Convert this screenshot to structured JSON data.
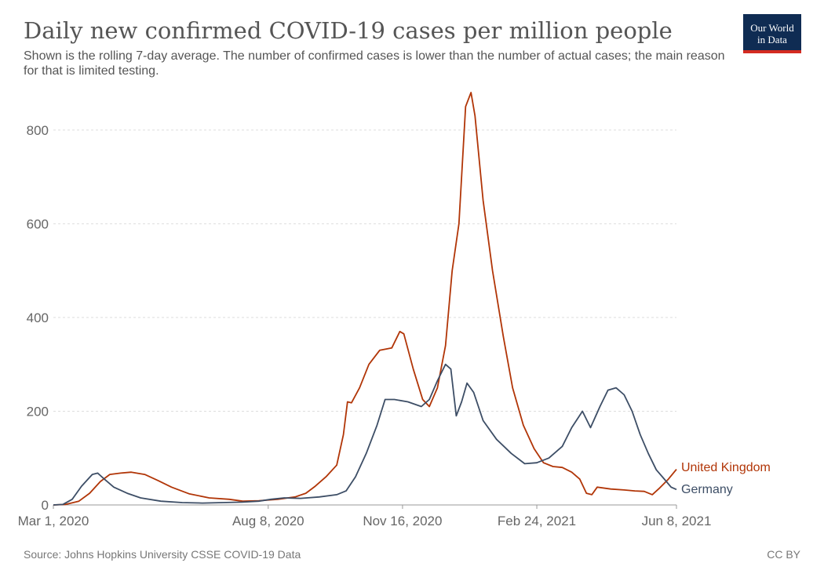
{
  "header": {
    "title": "Daily new confirmed COVID-19 cases per million people",
    "subtitle": "Shown is the rolling 7-day average. The number of confirmed cases is lower than the number of actual cases; the main reason for that is limited testing.",
    "logo_line1": "Our World",
    "logo_line2": "in Data"
  },
  "footer": {
    "source": "Source: Johns Hopkins University CSSE COVID-19 Data",
    "license": "CC BY"
  },
  "chart_data": {
    "type": "line",
    "title": "Daily new confirmed COVID-19 cases per million people",
    "xlabel": "",
    "ylabel": "",
    "x_range": [
      "2020-03-01",
      "2021-06-08"
    ],
    "ylim": [
      0,
      880
    ],
    "y_ticks": [
      0,
      200,
      400,
      600,
      800
    ],
    "x_ticks": [
      {
        "date": "2020-03-01",
        "label": "Mar 1, 2020"
      },
      {
        "date": "2020-08-08",
        "label": "Aug 8, 2020"
      },
      {
        "date": "2020-11-16",
        "label": "Nov 16, 2020"
      },
      {
        "date": "2021-02-24",
        "label": "Feb 24, 2021"
      },
      {
        "date": "2021-06-08",
        "label": "Jun 8, 2021"
      }
    ],
    "grid": "horizontal dashed",
    "legend": "end-of-line labels",
    "series": [
      {
        "name": "United Kingdom",
        "color": "#b13507",
        "points": [
          [
            "2020-03-01",
            0
          ],
          [
            "2020-03-10",
            1
          ],
          [
            "2020-03-20",
            8
          ],
          [
            "2020-03-28",
            25
          ],
          [
            "2020-04-05",
            50
          ],
          [
            "2020-04-12",
            65
          ],
          [
            "2020-04-20",
            68
          ],
          [
            "2020-04-28",
            70
          ],
          [
            "2020-05-08",
            65
          ],
          [
            "2020-05-18",
            52
          ],
          [
            "2020-05-28",
            38
          ],
          [
            "2020-06-10",
            24
          ],
          [
            "2020-06-25",
            15
          ],
          [
            "2020-07-10",
            12
          ],
          [
            "2020-07-20",
            8
          ],
          [
            "2020-08-01",
            9
          ],
          [
            "2020-08-15",
            12
          ],
          [
            "2020-08-28",
            17
          ],
          [
            "2020-09-05",
            25
          ],
          [
            "2020-09-12",
            40
          ],
          [
            "2020-09-20",
            60
          ],
          [
            "2020-09-28",
            85
          ],
          [
            "2020-10-03",
            150
          ],
          [
            "2020-10-06",
            220
          ],
          [
            "2020-10-09",
            218
          ],
          [
            "2020-10-15",
            250
          ],
          [
            "2020-10-22",
            300
          ],
          [
            "2020-10-30",
            330
          ],
          [
            "2020-11-08",
            335
          ],
          [
            "2020-11-14",
            370
          ],
          [
            "2020-11-17",
            365
          ],
          [
            "2020-11-24",
            290
          ],
          [
            "2020-12-01",
            225
          ],
          [
            "2020-12-06",
            210
          ],
          [
            "2020-12-12",
            250
          ],
          [
            "2020-12-18",
            340
          ],
          [
            "2020-12-23",
            500
          ],
          [
            "2020-12-28",
            600
          ],
          [
            "2021-01-02",
            850
          ],
          [
            "2021-01-06",
            880
          ],
          [
            "2021-01-09",
            830
          ],
          [
            "2021-01-15",
            650
          ],
          [
            "2021-01-22",
            500
          ],
          [
            "2021-01-30",
            360
          ],
          [
            "2021-02-06",
            250
          ],
          [
            "2021-02-14",
            170
          ],
          [
            "2021-02-22",
            120
          ],
          [
            "2021-03-01",
            90
          ],
          [
            "2021-03-08",
            82
          ],
          [
            "2021-03-15",
            80
          ],
          [
            "2021-03-22",
            70
          ],
          [
            "2021-03-28",
            55
          ],
          [
            "2021-04-02",
            25
          ],
          [
            "2021-04-06",
            22
          ],
          [
            "2021-04-10",
            38
          ],
          [
            "2021-04-20",
            34
          ],
          [
            "2021-04-30",
            32
          ],
          [
            "2021-05-08",
            30
          ],
          [
            "2021-05-15",
            29
          ],
          [
            "2021-05-21",
            22
          ],
          [
            "2021-05-26",
            35
          ],
          [
            "2021-06-02",
            55
          ],
          [
            "2021-06-08",
            76
          ]
        ]
      },
      {
        "name": "Germany",
        "color": "#3d4e66",
        "points": [
          [
            "2020-03-01",
            0
          ],
          [
            "2020-03-08",
            1
          ],
          [
            "2020-03-15",
            12
          ],
          [
            "2020-03-22",
            40
          ],
          [
            "2020-03-30",
            65
          ],
          [
            "2020-04-03",
            68
          ],
          [
            "2020-04-08",
            55
          ],
          [
            "2020-04-15",
            38
          ],
          [
            "2020-04-25",
            25
          ],
          [
            "2020-05-05",
            15
          ],
          [
            "2020-05-20",
            8
          ],
          [
            "2020-06-05",
            5
          ],
          [
            "2020-06-20",
            4
          ],
          [
            "2020-07-05",
            5
          ],
          [
            "2020-07-20",
            6
          ],
          [
            "2020-08-01",
            8
          ],
          [
            "2020-08-10",
            12
          ],
          [
            "2020-08-20",
            15
          ],
          [
            "2020-09-01",
            14
          ],
          [
            "2020-09-15",
            17
          ],
          [
            "2020-09-28",
            22
          ],
          [
            "2020-10-05",
            30
          ],
          [
            "2020-10-12",
            60
          ],
          [
            "2020-10-20",
            110
          ],
          [
            "2020-10-28",
            170
          ],
          [
            "2020-11-03",
            225
          ],
          [
            "2020-11-10",
            225
          ],
          [
            "2020-11-20",
            220
          ],
          [
            "2020-11-30",
            210
          ],
          [
            "2020-12-06",
            225
          ],
          [
            "2020-12-12",
            265
          ],
          [
            "2020-12-18",
            300
          ],
          [
            "2020-12-22",
            290
          ],
          [
            "2020-12-26",
            190
          ],
          [
            "2020-12-30",
            220
          ],
          [
            "2021-01-03",
            260
          ],
          [
            "2021-01-08",
            240
          ],
          [
            "2021-01-15",
            180
          ],
          [
            "2021-01-25",
            140
          ],
          [
            "2021-02-05",
            110
          ],
          [
            "2021-02-15",
            88
          ],
          [
            "2021-02-24",
            90
          ],
          [
            "2021-03-05",
            100
          ],
          [
            "2021-03-15",
            125
          ],
          [
            "2021-03-22",
            165
          ],
          [
            "2021-03-30",
            200
          ],
          [
            "2021-04-05",
            165
          ],
          [
            "2021-04-12",
            210
          ],
          [
            "2021-04-18",
            245
          ],
          [
            "2021-04-24",
            250
          ],
          [
            "2021-04-30",
            235
          ],
          [
            "2021-05-06",
            200
          ],
          [
            "2021-05-12",
            150
          ],
          [
            "2021-05-18",
            110
          ],
          [
            "2021-05-24",
            75
          ],
          [
            "2021-05-30",
            55
          ],
          [
            "2021-06-04",
            38
          ],
          [
            "2021-06-08",
            33
          ]
        ]
      }
    ]
  }
}
